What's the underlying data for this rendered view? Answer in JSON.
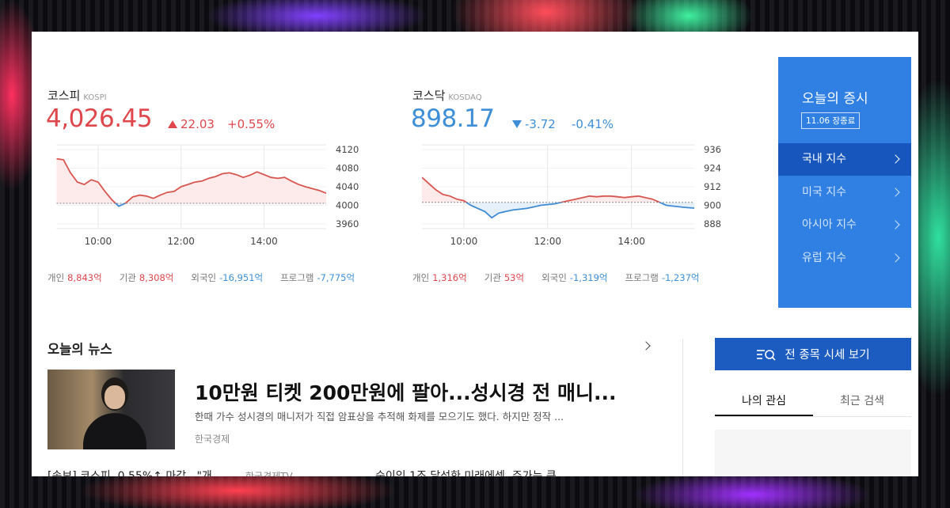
{
  "markets": [
    {
      "name": "코스피",
      "code": "KOSPI",
      "price": "4,026.45",
      "change": "22.03",
      "change_pct": "+0.55%",
      "direction": "up",
      "chart": {
        "type": "line",
        "values": [
          4100,
          4098,
          4070,
          4050,
          4045,
          4055,
          4050,
          4030,
          4012,
          3998,
          4005,
          4018,
          4022,
          4020,
          4015,
          4022,
          4028,
          4030,
          4040,
          4045,
          4050,
          4052,
          4058,
          4062,
          4068,
          4070,
          4066,
          4060,
          4065,
          4072,
          4066,
          4060,
          4058,
          4060,
          4052,
          4045,
          4040,
          4036,
          4032,
          4026
        ],
        "reference": 4004.42,
        "ylim": [
          3950,
          4130
        ],
        "yticks": [
          3960,
          4000,
          4040,
          4080,
          4120
        ],
        "xticks": [
          "10:00",
          "12:00",
          "14:00"
        ],
        "color_up": "#d8564f",
        "color_down": "#3f8bd3"
      },
      "investors": [
        {
          "label": "개인",
          "value": "8,843억"
        },
        {
          "label": "기관",
          "value": "8,308억"
        },
        {
          "label": "외국인",
          "value": "-16,951억"
        },
        {
          "label": "프로그램",
          "value": "-7,775억"
        }
      ]
    },
    {
      "name": "코스닥",
      "code": "KOSDAQ",
      "price": "898.17",
      "change": "-3.72",
      "change_pct": "-0.41%",
      "direction": "down",
      "chart": {
        "type": "line",
        "values": [
          918,
          914,
          910,
          907,
          906,
          904,
          903,
          900,
          898,
          896,
          892,
          895,
          896,
          897,
          897.5,
          898,
          899,
          900,
          900.5,
          901,
          902,
          903,
          904,
          905,
          906,
          905.5,
          906,
          906,
          905.5,
          905,
          905.5,
          906,
          905,
          904,
          902,
          900,
          899.5,
          899,
          898.5,
          898.2
        ],
        "reference": 901.89,
        "ylim": [
          885,
          939
        ],
        "yticks": [
          888,
          900,
          912,
          924,
          936
        ],
        "xticks": [
          "10:00",
          "12:00",
          "14:00"
        ],
        "color_up": "#d8564f",
        "color_down": "#3f8bd3"
      },
      "investors": [
        {
          "label": "개인",
          "value": "1,316억"
        },
        {
          "label": "기관",
          "value": "53억"
        },
        {
          "label": "외국인",
          "value": "-1,319억"
        },
        {
          "label": "프로그램",
          "value": "-1,237억"
        }
      ]
    }
  ],
  "sidebar": {
    "title": "오늘의 증시",
    "badge": "11.06 장종료",
    "menu": [
      "국내 지수",
      "미국 지수",
      "아시아 지수",
      "유럽 지수"
    ],
    "active": 0
  },
  "news": {
    "title": "오늘의 뉴스",
    "headline": "10만원 티켓 200만원에 팔아...성시경 전 매니...",
    "summary": "한때 가수 성시경의 매니저가 직접 암표상을 추적해 화제를 모으기도 했다. 하지만 정작 ...",
    "source": "한국경제",
    "more": [
      {
        "title": "[속보] 코스피, 0.55%↑ 마감...\"개",
        "source": "한국경제TV"
      },
      {
        "title": "순이익 1조 달성한 미래에셋, 주가는 큰"
      }
    ]
  },
  "actions": {
    "button": "전 종목 시세 보기",
    "tabs": [
      "나의 관심",
      "최근 검색"
    ],
    "active_tab": 0
  }
}
